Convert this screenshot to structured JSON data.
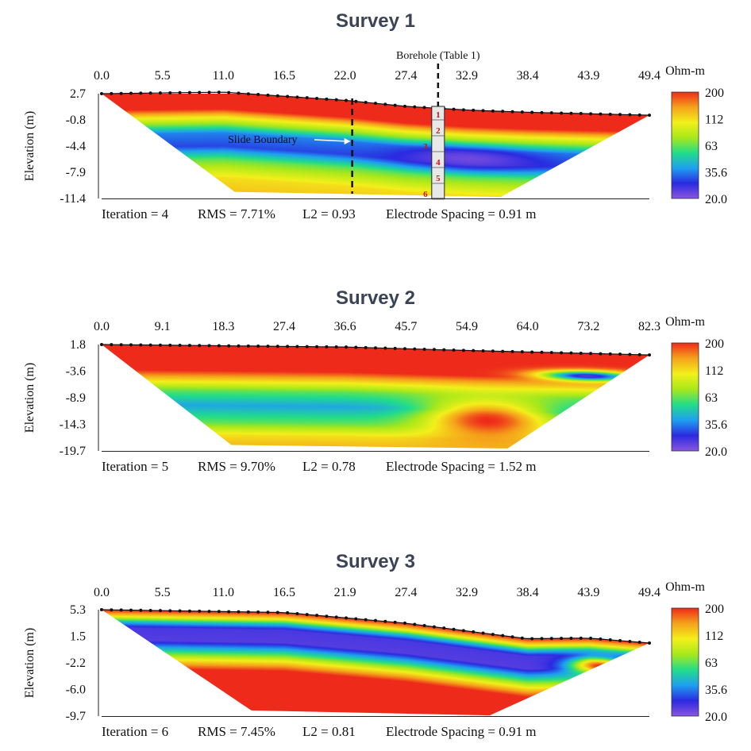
{
  "colors": {
    "scale": [
      "#8a55e0",
      "#2a2ae0",
      "#1ea0f0",
      "#22dd88",
      "#a8e81a",
      "#f3f01a",
      "#f5a21a",
      "#ee2a1a"
    ],
    "title": "#3a4456"
  },
  "colorbar": {
    "unit": "Ohm-m",
    "labels": [
      "200",
      "112",
      "63",
      "35.6",
      "20.0"
    ]
  },
  "chart_data": [
    {
      "type": "heatmap",
      "title": "Survey 1",
      "ylabel": "Elevation (m)",
      "xticks": [
        "0.0",
        "5.5",
        "11.0",
        "16.5",
        "22.0",
        "27.4",
        "32.9",
        "38.4",
        "43.9",
        "49.4"
      ],
      "yticks": [
        "2.7",
        "-0.8",
        "-4.4",
        "-7.9",
        "-11.4"
      ],
      "xlim": [
        0,
        49.4
      ],
      "ylim": [
        -11.4,
        2.7
      ],
      "stats": {
        "iteration": "Iteration = 4",
        "rms": "RMS = 7.71%",
        "l2": "L2 = 0.93",
        "spacing": "Electrode Spacing = 0.91 m"
      },
      "annotations": {
        "borehole": "Borehole (Table 1)",
        "slide_boundary": "Slide Boundary",
        "borehole_layers": [
          "1",
          "2",
          "3",
          "4",
          "5",
          "6"
        ]
      },
      "surface": [
        [
          0,
          2.7
        ],
        [
          11,
          2.9
        ],
        [
          22,
          1.8
        ],
        [
          27.4,
          1.0
        ],
        [
          32.9,
          0.5
        ],
        [
          38.4,
          0.2
        ],
        [
          49.4,
          -0.2
        ]
      ],
      "bottom": [
        [
          12,
          -10.5
        ],
        [
          36,
          -11.2
        ]
      ],
      "bands": [
        {
          "depth": 0.0,
          "rho": 200
        },
        {
          "depth": 2.2,
          "rho": 200
        },
        {
          "depth": 3.2,
          "rho": 112
        },
        {
          "depth": 4.2,
          "rho": 70
        },
        {
          "depth": 5.4,
          "rho": 35.6
        },
        {
          "depth": 7.2,
          "rho": 30
        },
        {
          "depth": 9.0,
          "rho": 63
        },
        {
          "depth": 11.5,
          "rho": 112
        },
        {
          "depth": 14.0,
          "rho": 130
        }
      ],
      "blobs": [
        {
          "x": 33,
          "depth": 6.5,
          "rx": 8,
          "rdepth": 1.8,
          "rho": 22
        }
      ]
    },
    {
      "type": "heatmap",
      "title": "Survey 2",
      "ylabel": "Elevation (m)",
      "xticks": [
        "0.0",
        "9.1",
        "18.3",
        "27.4",
        "36.6",
        "45.7",
        "54.9",
        "64.0",
        "73.2",
        "82.3"
      ],
      "yticks": [
        "1.8",
        "-3.6",
        "-8.9",
        "-14.3",
        "-19.7"
      ],
      "xlim": [
        0,
        82.3
      ],
      "ylim": [
        -19.7,
        1.8
      ],
      "stats": {
        "iteration": "Iteration = 5",
        "rms": "RMS = 9.70%",
        "l2": "L2 = 0.78",
        "spacing": "Electrode Spacing = 1.52 m"
      },
      "surface": [
        [
          0,
          1.8
        ],
        [
          36.6,
          1.3
        ],
        [
          54.9,
          0.6
        ],
        [
          82.3,
          -0.3
        ]
      ],
      "bottom": [
        [
          19.5,
          -18.5
        ],
        [
          61,
          -19.2
        ]
      ],
      "bands": [
        {
          "depth": 0.0,
          "rho": 200
        },
        {
          "depth": 5.0,
          "rho": 200
        },
        {
          "depth": 7.0,
          "rho": 112
        },
        {
          "depth": 9.0,
          "rho": 63
        },
        {
          "depth": 12.0,
          "rho": 40
        },
        {
          "depth": 15.5,
          "rho": 63
        },
        {
          "depth": 18.0,
          "rho": 112
        },
        {
          "depth": 22.0,
          "rho": 150
        }
      ],
      "blobs": [
        {
          "x": 73,
          "depth": 4.5,
          "rx": 9,
          "rdepth": 1.3,
          "rho": 24
        },
        {
          "x": 58,
          "depth": 14.0,
          "rx": 12,
          "rdepth": 5.5,
          "rho": 200
        }
      ]
    },
    {
      "type": "heatmap",
      "title": "Survey 3",
      "ylabel": "Elevation (m)",
      "xticks": [
        "0.0",
        "5.5",
        "11.0",
        "16.5",
        "21.9",
        "27.4",
        "32.9",
        "38.4",
        "43.9",
        "49.4"
      ],
      "yticks": [
        "5.3",
        "1.5",
        "-2.2",
        "-6.0",
        "-9.7"
      ],
      "xlim": [
        0,
        49.4
      ],
      "ylim": [
        -9.7,
        5.3
      ],
      "stats": {
        "iteration": "Iteration = 6",
        "rms": "RMS = 7.45%",
        "l2": "L2 = 0.81",
        "spacing": "Electrode Spacing = 0.91 m"
      },
      "surface": [
        [
          0,
          5.3
        ],
        [
          16.5,
          4.9
        ],
        [
          27.4,
          3.4
        ],
        [
          38.4,
          1.2
        ],
        [
          43.9,
          1.3
        ],
        [
          49.4,
          0.6
        ]
      ],
      "bottom": [
        [
          13.5,
          -8.9
        ],
        [
          35,
          -9.6
        ]
      ],
      "bands": [
        {
          "depth": 0.0,
          "rho": 200
        },
        {
          "depth": 0.8,
          "rho": 112
        },
        {
          "depth": 1.6,
          "rho": 45
        },
        {
          "depth": 2.4,
          "rho": 25
        },
        {
          "depth": 4.2,
          "rho": 24
        },
        {
          "depth": 5.6,
          "rho": 50
        },
        {
          "depth": 7.0,
          "rho": 112
        },
        {
          "depth": 8.2,
          "rho": 200
        },
        {
          "depth": 16.0,
          "rho": 200
        }
      ],
      "blobs": [
        {
          "x": 45,
          "depth": 3.8,
          "rx": 3.5,
          "rdepth": 1.5,
          "rho": 200
        }
      ]
    }
  ]
}
